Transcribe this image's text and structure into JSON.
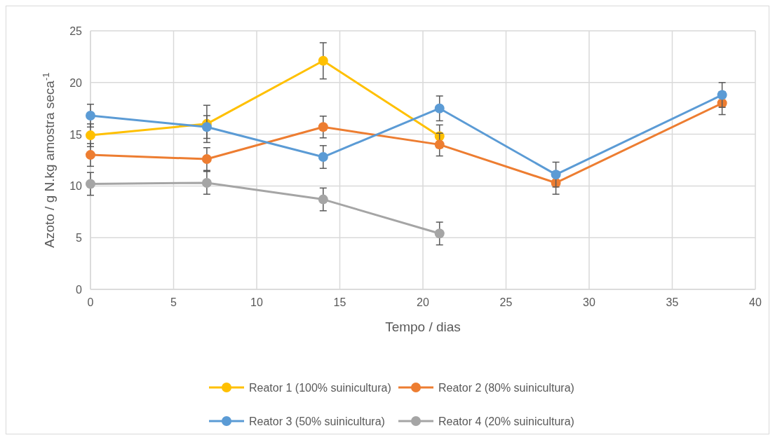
{
  "chart_data": {
    "type": "line",
    "xlabel": "Tempo / dias",
    "ylabel": "Azoto / g N.kg amostra seca$^{-1}$",
    "xlim": [
      0,
      40
    ],
    "xticks": [
      0,
      5,
      10,
      15,
      20,
      25,
      30,
      35,
      40
    ],
    "ylim": [
      0,
      25
    ],
    "yticks": [
      0,
      5,
      10,
      15,
      20,
      25
    ],
    "grid": true,
    "legend": "bottom",
    "marker": "circle",
    "line_style": "solid",
    "series": [
      {
        "name": "Reator 1 (100% suinicultura)",
        "color": "#ffc000",
        "x": [
          0,
          7,
          14,
          21
        ],
        "values": [
          14.9,
          16.0,
          22.1,
          14.8
        ],
        "errors": [
          1.1,
          1.8,
          1.75,
          1.1
        ]
      },
      {
        "name": "Reator 2 (80% suinicultura)",
        "color": "#ed7d31",
        "x": [
          0,
          7,
          14,
          21,
          28,
          38
        ],
        "values": [
          13.0,
          12.6,
          15.7,
          14.0,
          10.3,
          18.0
        ],
        "errors": [
          1.1,
          1.1,
          1.05,
          1.1,
          1.1,
          1.1
        ]
      },
      {
        "name": "Reator 3 (50% suinicultura)",
        "color": "#5b9bd5",
        "x": [
          0,
          7,
          14,
          21,
          28,
          38
        ],
        "values": [
          16.8,
          15.7,
          12.8,
          17.5,
          11.1,
          18.8
        ],
        "errors": [
          1.1,
          1.1,
          1.1,
          1.2,
          1.2,
          1.2
        ]
      },
      {
        "name": "Reator 4 (20% suinicultura)",
        "color": "#a5a5a5",
        "x": [
          0,
          7,
          14,
          21
        ],
        "values": [
          10.2,
          10.3,
          8.7,
          5.4
        ],
        "errors": [
          1.1,
          1.1,
          1.1,
          1.1
        ]
      }
    ]
  }
}
